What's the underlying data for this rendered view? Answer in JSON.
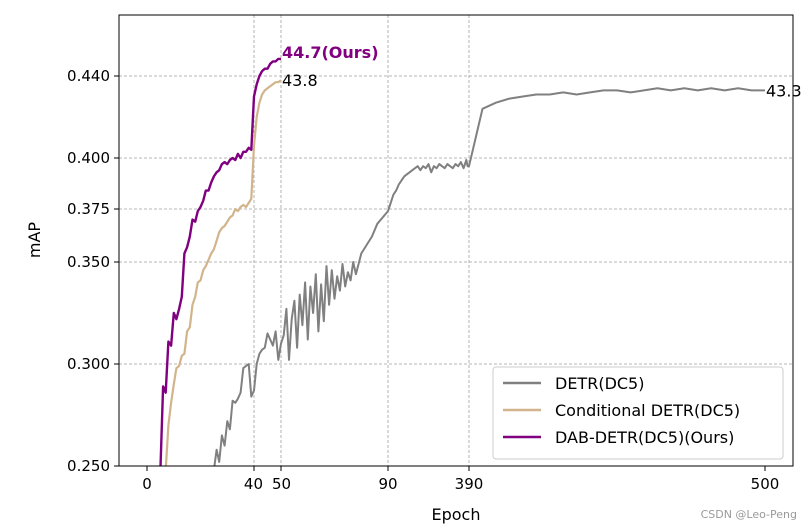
{
  "chart_data": {
    "type": "line",
    "title": "",
    "xlabel": "Epoch",
    "ylabel": "mAP",
    "ylim": [
      0.25,
      0.465
    ],
    "y_ticks": [
      "0.250",
      "0.300",
      "0.350",
      "0.375",
      "0.400",
      "0.440"
    ],
    "y_tick_values": [
      0.25,
      0.3,
      0.35,
      0.375,
      0.4,
      0.44
    ],
    "x_ticks": [
      {
        "label": "0",
        "epoch": 0
      },
      {
        "label": "40",
        "epoch": 40
      },
      {
        "label": "50",
        "epoch": 50
      },
      {
        "label": "90",
        "epoch": 90
      },
      {
        "label": "390",
        "epoch": 390
      },
      {
        "label": "500",
        "epoch": 500
      }
    ],
    "grid": true,
    "legend_position": "bottom-right",
    "series": [
      {
        "name": "DETR(DC5)",
        "color": "#808080",
        "end_label": "43.3",
        "end_label_bold": false,
        "points": [
          [
            25,
            0.248
          ],
          [
            26,
            0.258
          ],
          [
            27,
            0.252
          ],
          [
            28,
            0.265
          ],
          [
            29,
            0.26
          ],
          [
            30,
            0.272
          ],
          [
            31,
            0.268
          ],
          [
            32,
            0.282
          ],
          [
            33,
            0.281
          ],
          [
            34,
            0.283
          ],
          [
            35,
            0.286
          ],
          [
            36,
            0.298
          ],
          [
            37,
            0.299
          ],
          [
            38,
            0.3
          ],
          [
            39,
            0.284
          ],
          [
            40,
            0.287
          ],
          [
            41,
            0.3
          ],
          [
            42,
            0.305
          ],
          [
            43,
            0.307
          ],
          [
            44,
            0.308
          ],
          [
            45,
            0.315
          ],
          [
            46,
            0.312
          ],
          [
            47,
            0.309
          ],
          [
            48,
            0.316
          ],
          [
            49,
            0.302
          ],
          [
            50,
            0.31
          ],
          [
            51,
            0.314
          ],
          [
            52,
            0.327
          ],
          [
            53,
            0.302
          ],
          [
            54,
            0.322
          ],
          [
            55,
            0.331
          ],
          [
            56,
            0.308
          ],
          [
            57,
            0.334
          ],
          [
            58,
            0.319
          ],
          [
            59,
            0.34
          ],
          [
            60,
            0.312
          ],
          [
            61,
            0.338
          ],
          [
            62,
            0.325
          ],
          [
            63,
            0.344
          ],
          [
            64,
            0.316
          ],
          [
            65,
            0.339
          ],
          [
            66,
            0.321
          ],
          [
            67,
            0.348
          ],
          [
            68,
            0.329
          ],
          [
            69,
            0.346
          ],
          [
            70,
            0.332
          ],
          [
            71,
            0.343
          ],
          [
            72,
            0.336
          ],
          [
            73,
            0.349
          ],
          [
            74,
            0.338
          ],
          [
            75,
            0.345
          ],
          [
            76,
            0.341
          ],
          [
            77,
            0.35
          ],
          [
            78,
            0.344
          ],
          [
            80,
            0.354
          ],
          [
            82,
            0.358
          ],
          [
            84,
            0.362
          ],
          [
            86,
            0.368
          ],
          [
            88,
            0.371
          ],
          [
            90,
            0.374
          ],
          [
            100,
            0.378
          ],
          [
            110,
            0.382
          ],
          [
            120,
            0.384
          ],
          [
            130,
            0.387
          ],
          [
            140,
            0.389
          ],
          [
            150,
            0.391
          ],
          [
            160,
            0.392
          ],
          [
            170,
            0.393
          ],
          [
            180,
            0.394
          ],
          [
            190,
            0.395
          ],
          [
            200,
            0.396
          ],
          [
            210,
            0.394
          ],
          [
            220,
            0.396
          ],
          [
            230,
            0.395
          ],
          [
            240,
            0.397
          ],
          [
            250,
            0.393
          ],
          [
            260,
            0.396
          ],
          [
            270,
            0.395
          ],
          [
            280,
            0.397
          ],
          [
            290,
            0.396
          ],
          [
            300,
            0.395
          ],
          [
            310,
            0.397
          ],
          [
            320,
            0.396
          ],
          [
            330,
            0.395
          ],
          [
            340,
            0.397
          ],
          [
            350,
            0.396
          ],
          [
            360,
            0.398
          ],
          [
            370,
            0.395
          ],
          [
            380,
            0.399
          ],
          [
            385,
            0.396
          ],
          [
            390,
            0.396
          ],
          [
            395,
            0.424
          ],
          [
            400,
            0.427
          ],
          [
            405,
            0.429
          ],
          [
            410,
            0.43
          ],
          [
            415,
            0.431
          ],
          [
            420,
            0.431
          ],
          [
            425,
            0.432
          ],
          [
            430,
            0.431
          ],
          [
            435,
            0.432
          ],
          [
            440,
            0.433
          ],
          [
            445,
            0.433
          ],
          [
            450,
            0.432
          ],
          [
            455,
            0.433
          ],
          [
            460,
            0.434
          ],
          [
            465,
            0.433
          ],
          [
            470,
            0.434
          ],
          [
            475,
            0.433
          ],
          [
            480,
            0.434
          ],
          [
            485,
            0.433
          ],
          [
            490,
            0.434
          ],
          [
            495,
            0.433
          ],
          [
            500,
            0.433
          ]
        ]
      },
      {
        "name": "Conditional DETR(DC5)",
        "color": "#d2b48c",
        "end_label": "43.8",
        "end_label_bold": false,
        "points": [
          [
            7,
            0.248
          ],
          [
            8,
            0.27
          ],
          [
            9,
            0.281
          ],
          [
            10,
            0.29
          ],
          [
            11,
            0.298
          ],
          [
            12,
            0.299
          ],
          [
            13,
            0.304
          ],
          [
            14,
            0.305
          ],
          [
            15,
            0.316
          ],
          [
            16,
            0.318
          ],
          [
            17,
            0.329
          ],
          [
            18,
            0.333
          ],
          [
            19,
            0.34
          ],
          [
            20,
            0.341
          ],
          [
            21,
            0.346
          ],
          [
            22,
            0.348
          ],
          [
            23,
            0.351
          ],
          [
            24,
            0.354
          ],
          [
            25,
            0.356
          ],
          [
            26,
            0.36
          ],
          [
            27,
            0.364
          ],
          [
            28,
            0.366
          ],
          [
            29,
            0.367
          ],
          [
            30,
            0.369
          ],
          [
            31,
            0.371
          ],
          [
            32,
            0.372
          ],
          [
            33,
            0.375
          ],
          [
            34,
            0.374
          ],
          [
            35,
            0.376
          ],
          [
            36,
            0.377
          ],
          [
            37,
            0.376
          ],
          [
            38,
            0.378
          ],
          [
            39,
            0.38
          ],
          [
            40,
            0.406
          ],
          [
            41,
            0.42
          ],
          [
            42,
            0.427
          ],
          [
            43,
            0.431
          ],
          [
            44,
            0.433
          ],
          [
            45,
            0.434
          ],
          [
            46,
            0.435
          ],
          [
            47,
            0.436
          ],
          [
            48,
            0.437
          ],
          [
            49,
            0.437
          ],
          [
            50,
            0.438
          ]
        ]
      },
      {
        "name": "DAB-DETR(DC5)(Ours)",
        "color": "#800080",
        "end_label": "44.7(Ours)",
        "end_label_bold": true,
        "points": [
          [
            5,
            0.248
          ],
          [
            6,
            0.289
          ],
          [
            7,
            0.286
          ],
          [
            8,
            0.311
          ],
          [
            9,
            0.309
          ],
          [
            10,
            0.325
          ],
          [
            11,
            0.322
          ],
          [
            12,
            0.327
          ],
          [
            13,
            0.333
          ],
          [
            14,
            0.354
          ],
          [
            15,
            0.357
          ],
          [
            16,
            0.362
          ],
          [
            17,
            0.37
          ],
          [
            18,
            0.369
          ],
          [
            19,
            0.374
          ],
          [
            20,
            0.376
          ],
          [
            21,
            0.379
          ],
          [
            22,
            0.384
          ],
          [
            23,
            0.384
          ],
          [
            24,
            0.388
          ],
          [
            25,
            0.391
          ],
          [
            26,
            0.393
          ],
          [
            27,
            0.394
          ],
          [
            28,
            0.397
          ],
          [
            29,
            0.398
          ],
          [
            30,
            0.397
          ],
          [
            31,
            0.399
          ],
          [
            32,
            0.4
          ],
          [
            33,
            0.399
          ],
          [
            34,
            0.402
          ],
          [
            35,
            0.4
          ],
          [
            36,
            0.403
          ],
          [
            37,
            0.403
          ],
          [
            38,
            0.405
          ],
          [
            39,
            0.404
          ],
          [
            40,
            0.43
          ],
          [
            41,
            0.436
          ],
          [
            42,
            0.44
          ],
          [
            43,
            0.442
          ],
          [
            44,
            0.443
          ],
          [
            45,
            0.443
          ],
          [
            46,
            0.445
          ],
          [
            47,
            0.446
          ],
          [
            48,
            0.446
          ],
          [
            49,
            0.447
          ],
          [
            50,
            0.447
          ]
        ]
      }
    ]
  },
  "watermark": "CSDN @Leo-Peng"
}
